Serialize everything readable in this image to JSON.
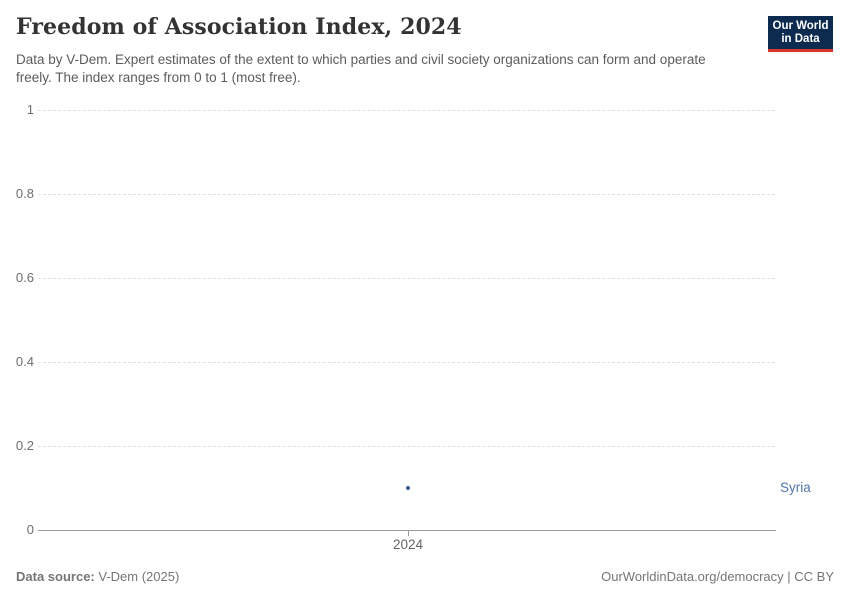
{
  "header": {
    "title": "Freedom of Association Index, 2024",
    "subtitle": "Data by V-Dem. Expert estimates of the extent to which parties and civil society organizations can form and operate freely. The index ranges from 0 to 1 (most free)."
  },
  "logo": {
    "line1": "Our World",
    "line2": "in Data",
    "bg_color": "#0c2b4e",
    "bar_color": "#d7372c"
  },
  "chart_data": {
    "type": "scatter",
    "title": "Freedom of Association Index, 2024",
    "x": [
      2024
    ],
    "series": [
      {
        "name": "Syria",
        "values": [
          0.1
        ]
      }
    ],
    "entity_label": "Syria",
    "xlabel": "",
    "ylabel": "",
    "ylim": [
      0,
      1
    ],
    "yticks": [
      0,
      0.2,
      0.4,
      0.6,
      0.8,
      1
    ],
    "xticks": [
      "2024"
    ],
    "grid": "horizontal-dashed",
    "legend_position": "entity label right of plot",
    "point_color": "#3f5e9c",
    "entity_label_color": "#5577ab"
  },
  "footer": {
    "source_label": "Data source:",
    "source_value": " V-Dem (2025)",
    "right": "OurWorldinData.org/democracy | CC BY"
  }
}
